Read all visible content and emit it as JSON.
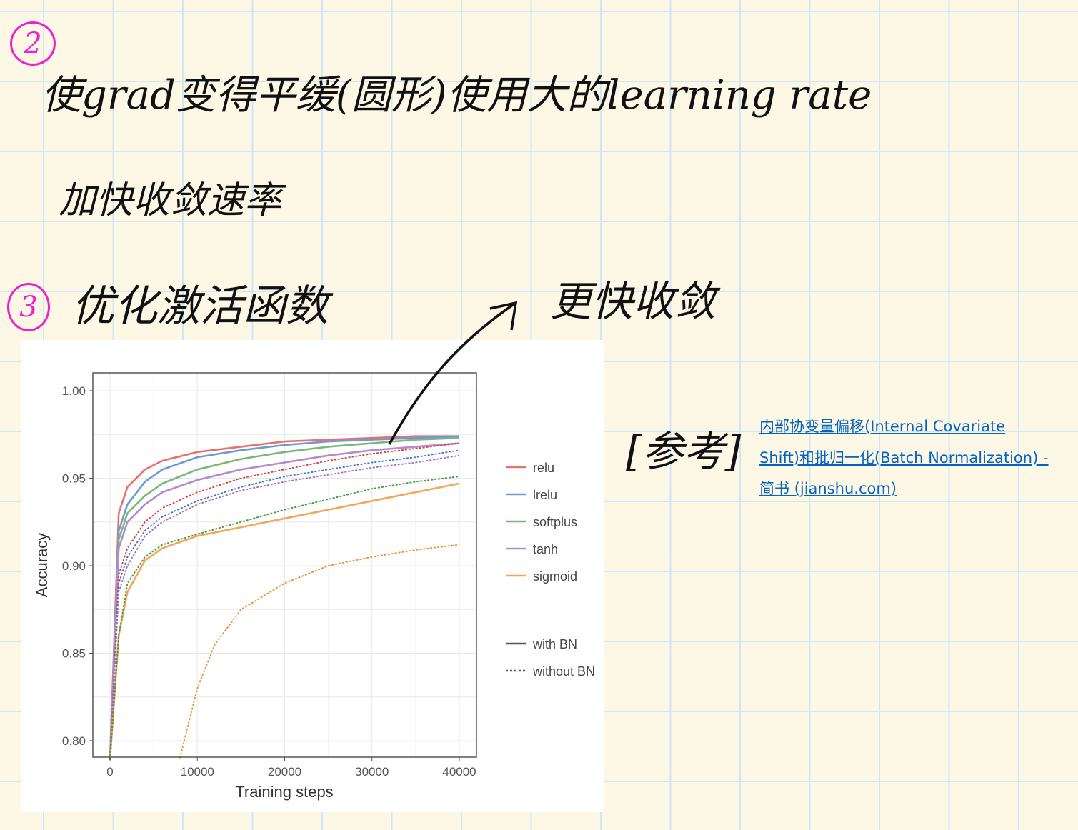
{
  "notes": {
    "item2": {
      "number": "2",
      "line1": "使grad变得平缓(圆形)使用大的learning rate",
      "line2": "加快收敛速率"
    },
    "item3": {
      "number": "3",
      "text": "优化激活函数"
    },
    "arrow_note": "更快收敛",
    "reference_label": "[参考]",
    "reference_link": {
      "line1": "内部协变量偏移(Internal Covariate",
      "line2": "Shift)和批归一化(Batch Normalization) -",
      "line3": "简书 (jianshu.com)"
    }
  },
  "colors": {
    "handwriting": "#111111",
    "number_circle": "#ee22cc",
    "link": "#0563c1",
    "grid": "#cfe6f5",
    "page": "#fdf8e6"
  },
  "chart_data": {
    "type": "line",
    "xlabel": "Training steps",
    "ylabel": "Accuracy",
    "xlim": [
      -1000,
      42000
    ],
    "ylim": [
      0.79,
      1.01
    ],
    "xticks": [
      "0",
      "10000",
      "20000",
      "30000",
      "40000"
    ],
    "yticks": [
      "0.80",
      "0.85",
      "0.90",
      "0.95",
      "1.00"
    ],
    "grid": true,
    "legend_placement": "right",
    "legend_colors": [
      "relu",
      "lrelu",
      "softplus",
      "tanh",
      "sigmoid"
    ],
    "legend_styles": [
      "with BN",
      "without BN"
    ],
    "x": [
      0,
      1000,
      2000,
      4000,
      6000,
      10000,
      15000,
      20000,
      25000,
      30000,
      35000,
      40000
    ],
    "series": [
      {
        "activation": "relu",
        "bn": true,
        "color": "#e8716b",
        "values": [
          0.78,
          0.93,
          0.945,
          0.955,
          0.96,
          0.965,
          0.968,
          0.971,
          0.972,
          0.973,
          0.974,
          0.974
        ]
      },
      {
        "activation": "lrelu",
        "bn": true,
        "color": "#6c9ad4",
        "values": [
          0.78,
          0.92,
          0.935,
          0.948,
          0.955,
          0.962,
          0.966,
          0.969,
          0.971,
          0.972,
          0.973,
          0.974
        ]
      },
      {
        "activation": "softplus",
        "bn": true,
        "color": "#7ab87a",
        "values": [
          0.78,
          0.915,
          0.93,
          0.94,
          0.947,
          0.955,
          0.961,
          0.965,
          0.968,
          0.97,
          0.972,
          0.973
        ]
      },
      {
        "activation": "tanh",
        "bn": true,
        "color": "#b38cd0",
        "values": [
          0.78,
          0.91,
          0.925,
          0.935,
          0.942,
          0.949,
          0.955,
          0.959,
          0.963,
          0.966,
          0.968,
          0.97
        ]
      },
      {
        "activation": "sigmoid",
        "bn": true,
        "color": "#f5a65b",
        "values": [
          0.78,
          0.86,
          0.885,
          0.903,
          0.91,
          0.917,
          0.922,
          0.927,
          0.932,
          0.937,
          0.942,
          0.947
        ]
      },
      {
        "activation": "relu",
        "bn": false,
        "color": "#d63a3a",
        "values": [
          0.78,
          0.895,
          0.91,
          0.925,
          0.933,
          0.942,
          0.95,
          0.955,
          0.96,
          0.964,
          0.967,
          0.97
        ]
      },
      {
        "activation": "lrelu",
        "bn": false,
        "color": "#3b72c4",
        "values": [
          0.78,
          0.89,
          0.905,
          0.92,
          0.928,
          0.937,
          0.945,
          0.951,
          0.955,
          0.959,
          0.962,
          0.966
        ]
      },
      {
        "activation": "tanh",
        "bn": false,
        "color": "#9a6cc0",
        "values": [
          0.78,
          0.885,
          0.9,
          0.917,
          0.925,
          0.935,
          0.943,
          0.948,
          0.952,
          0.956,
          0.959,
          0.963
        ]
      },
      {
        "activation": "softplus",
        "bn": false,
        "color": "#3a9a3a",
        "values": [
          0.78,
          0.86,
          0.89,
          0.905,
          0.912,
          0.918,
          0.925,
          0.932,
          0.938,
          0.944,
          0.948,
          0.951
        ]
      },
      {
        "activation": "sigmoid",
        "bn": false,
        "color": "#e8902a",
        "x": [
          8000,
          10000,
          12000,
          15000,
          20000,
          25000,
          30000,
          35000,
          40000
        ],
        "values": [
          0.79,
          0.83,
          0.855,
          0.875,
          0.89,
          0.9,
          0.905,
          0.909,
          0.912
        ]
      }
    ]
  }
}
